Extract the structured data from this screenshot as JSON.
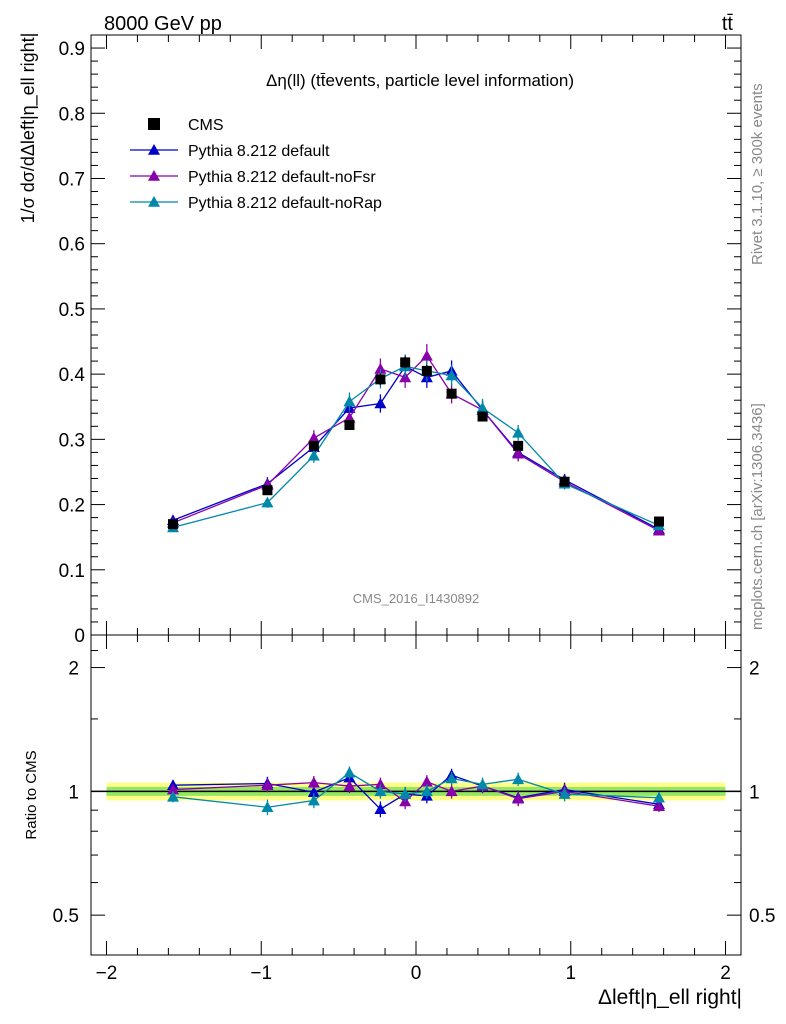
{
  "header": {
    "energy_label": "8000 GeV pp",
    "process_label": "tt̄"
  },
  "side_labels": {
    "rivet": "Rivet 3.1.10, ≥ 300k events",
    "mcplots": "mcplots.cern.ch [arXiv:1306.3436]"
  },
  "colors": {
    "CMS": "#000000",
    "default": "#0000cc",
    "noFsr": "#8800aa",
    "noRap": "#0088aa",
    "band_inner": "#66dd55",
    "band_outer": "#ffff88"
  },
  "chart_data": [
    {
      "type": "scatter",
      "title": "Δη(ll) (tt̄events, particle level information)",
      "ylabel": "1/σ dσ/dΔleft|η_ell right|",
      "xlabel": "",
      "watermark": "CMS_2016_I1430892",
      "xlim": [
        -2.1,
        2.1
      ],
      "ylim": [
        0,
        0.92
      ],
      "x_ticks": [
        -2,
        -1,
        0,
        1,
        2
      ],
      "y_ticks": [
        0,
        0.1,
        0.2,
        0.3,
        0.4,
        0.5,
        0.6,
        0.7,
        0.8,
        0.9
      ],
      "y_tick_labels": [
        "0",
        "0.1",
        "0.2",
        "0.3",
        "0.4",
        "0.5",
        "0.6",
        "0.7",
        "0.8",
        "0.9"
      ],
      "legend_position": "top-left",
      "x": [
        -1.57,
        -0.96,
        -0.66,
        -0.43,
        -0.23,
        -0.07,
        0.07,
        0.23,
        0.43,
        0.66,
        0.96,
        1.57
      ],
      "series": [
        {
          "name": "CMS",
          "marker": "square",
          "values": [
            0.17,
            0.222,
            0.29,
            0.322,
            0.392,
            0.418,
            0.405,
            0.37,
            0.335,
            0.29,
            0.235,
            0.174
          ],
          "err": [
            0.005,
            0.006,
            0.007,
            0.007,
            0.009,
            0.009,
            0.009,
            0.008,
            0.007,
            0.007,
            0.006,
            0.005
          ]
        },
        {
          "name": "Pythia 8.212 default",
          "marker": "triangle",
          "values": [
            0.176,
            0.232,
            0.288,
            0.348,
            0.355,
            0.412,
            0.395,
            0.405,
            0.345,
            0.28,
            0.238,
            0.162
          ],
          "err": [
            0.006,
            0.01,
            0.012,
            0.014,
            0.014,
            0.018,
            0.016,
            0.016,
            0.014,
            0.012,
            0.009,
            0.006
          ]
        },
        {
          "name": "Pythia 8.212 default-noFsr",
          "marker": "triangle",
          "values": [
            0.172,
            0.23,
            0.302,
            0.333,
            0.408,
            0.395,
            0.428,
            0.37,
            0.345,
            0.278,
            0.235,
            0.16
          ],
          "err": [
            0.006,
            0.01,
            0.012,
            0.014,
            0.016,
            0.016,
            0.018,
            0.015,
            0.014,
            0.012,
            0.009,
            0.006
          ]
        },
        {
          "name": "Pythia 8.212 default-noRap",
          "marker": "triangle",
          "values": [
            0.165,
            0.203,
            0.275,
            0.358,
            0.393,
            0.412,
            0.405,
            0.398,
            0.348,
            0.31,
            0.232,
            0.168
          ],
          "err": [
            0.006,
            0.008,
            0.011,
            0.014,
            0.015,
            0.017,
            0.016,
            0.016,
            0.014,
            0.012,
            0.009,
            0.006
          ]
        }
      ]
    },
    {
      "type": "scatter",
      "title": "",
      "ylabel": "Ratio to CMS",
      "xlabel": "Δleft|η_ell right|",
      "log_y": true,
      "xlim": [
        -2.1,
        2.1
      ],
      "ylim": [
        0.4,
        2.4
      ],
      "x_ticks": [
        -2,
        -1,
        0,
        1,
        2
      ],
      "x_tick_labels": [
        "−2",
        "−1",
        "0",
        "1",
        "2"
      ],
      "y_ticks": [
        0.5,
        1,
        2
      ],
      "y_tick_labels": [
        "0.5",
        "1",
        "2"
      ],
      "band_inner": [
        0.975,
        1.025
      ],
      "band_outer": [
        0.95,
        1.05
      ],
      "x": [
        -1.57,
        -0.96,
        -0.66,
        -0.43,
        -0.23,
        -0.07,
        0.07,
        0.23,
        0.43,
        0.66,
        0.96,
        1.57
      ],
      "series": [
        {
          "name": "Pythia 8.212 default",
          "values": [
            1.035,
            1.045,
            0.995,
            1.08,
            0.905,
            0.985,
            0.975,
            1.095,
            1.03,
            0.965,
            1.01,
            0.93
          ],
          "err": [
            0.03,
            0.04,
            0.04,
            0.04,
            0.04,
            0.04,
            0.04,
            0.04,
            0.04,
            0.04,
            0.04,
            0.03
          ]
        },
        {
          "name": "Pythia 8.212 default-noFsr",
          "values": [
            1.01,
            1.035,
            1.05,
            1.03,
            1.04,
            0.945,
            1.055,
            1.0,
            1.03,
            0.96,
            1.0,
            0.92
          ],
          "err": [
            0.03,
            0.04,
            0.04,
            0.04,
            0.04,
            0.04,
            0.04,
            0.04,
            0.04,
            0.04,
            0.04,
            0.03
          ]
        },
        {
          "name": "Pythia 8.212 default-noRap",
          "values": [
            0.97,
            0.915,
            0.95,
            1.11,
            1.0,
            0.985,
            1.0,
            1.075,
            1.04,
            1.07,
            0.985,
            0.965
          ],
          "err": [
            0.03,
            0.04,
            0.04,
            0.04,
            0.04,
            0.04,
            0.04,
            0.04,
            0.04,
            0.04,
            0.04,
            0.03
          ]
        }
      ]
    }
  ]
}
